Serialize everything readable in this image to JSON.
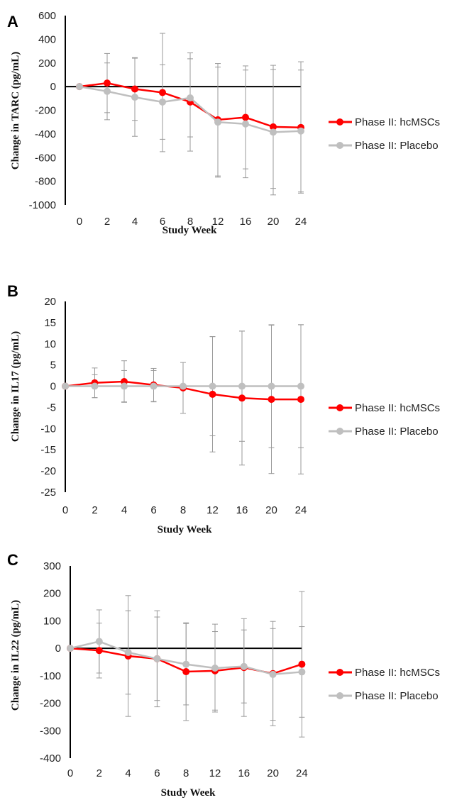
{
  "chart_data": [
    {
      "panel_label": "A",
      "type": "line",
      "x": [
        "0",
        "2",
        "4",
        "6",
        "8",
        "12",
        "16",
        "20",
        "24"
      ],
      "xlabel": "Study Week",
      "ylabel": "Change in TARC (pg/mL)",
      "ylim": [
        -1000,
        600
      ],
      "yticks": [
        "600",
        "400",
        "200",
        "0",
        "-200",
        "-400",
        "-600",
        "-800",
        "-1000"
      ],
      "zero_line": true,
      "series": [
        {
          "name": "Phase II: hcMSCs",
          "color": "#ff0000",
          "values": [
            0,
            30,
            -20,
            -50,
            -130,
            -280,
            -260,
            -340,
            -345
          ],
          "error": [
            0,
            250,
            265,
            500,
            415,
            475,
            435,
            520,
            555
          ]
        },
        {
          "name": "Phase II: Placebo",
          "color": "#bfbfbf",
          "values": [
            0,
            -40,
            -90,
            -130,
            -95,
            -300,
            -315,
            -385,
            -375
          ],
          "error": [
            0,
            240,
            330,
            315,
            330,
            465,
            455,
            530,
            515
          ]
        }
      ]
    },
    {
      "panel_label": "B",
      "type": "line",
      "x": [
        "0",
        "2",
        "4",
        "6",
        "8",
        "12",
        "16",
        "20",
        "24"
      ],
      "xlabel": "Study Week",
      "ylabel": "Change in IL17 (pg/mL)",
      "ylim": [
        -25,
        20
      ],
      "yticks": [
        "20",
        "15",
        "10",
        "5",
        "0",
        "-5",
        "-10",
        "-15",
        "-20",
        "-25"
      ],
      "zero_line": false,
      "series": [
        {
          "name": "Phase II: hcMSCs",
          "color": "#ff0000",
          "values": [
            0,
            0.8,
            1.1,
            0.3,
            -0.4,
            -1.9,
            -2.8,
            -3.1,
            -3.1
          ],
          "error": [
            0,
            3.5,
            4.9,
            3.9,
            6.0,
            13.6,
            15.8,
            17.5,
            17.6
          ]
        },
        {
          "name": "Phase II: Placebo",
          "color": "#bfbfbf",
          "values": [
            0,
            0,
            0,
            0,
            0,
            0,
            0,
            0,
            0
          ],
          "error": [
            0,
            2.7,
            3.7,
            3.7,
            0,
            11.7,
            13.0,
            14.5,
            14.5
          ]
        }
      ]
    },
    {
      "panel_label": "C",
      "type": "line",
      "x": [
        "0",
        "2",
        "4",
        "6",
        "8",
        "12",
        "16",
        "20",
        "24"
      ],
      "xlabel": "Study Week",
      "ylabel": "Change in IL22 (pg/mL)",
      "ylim": [
        -400,
        300
      ],
      "yticks": [
        "300",
        "200",
        "100",
        "0",
        "-100",
        "-200",
        "-300",
        "-400"
      ],
      "zero_line": true,
      "series": [
        {
          "name": "Phase II: hcMSCs",
          "color": "#ff0000",
          "values": [
            0,
            -8,
            -28,
            -38,
            -85,
            -82,
            -70,
            -92,
            -58
          ],
          "error": [
            0,
            100,
            220,
            175,
            178,
            143,
            178,
            190,
            265
          ]
        },
        {
          "name": "Phase II: Placebo",
          "color": "#bfbfbf",
          "values": [
            0,
            25,
            -15,
            -38,
            -58,
            -72,
            -66,
            -95,
            -86
          ],
          "error": [
            0,
            115,
            152,
            152,
            148,
            160,
            133,
            167,
            165
          ]
        }
      ]
    }
  ]
}
